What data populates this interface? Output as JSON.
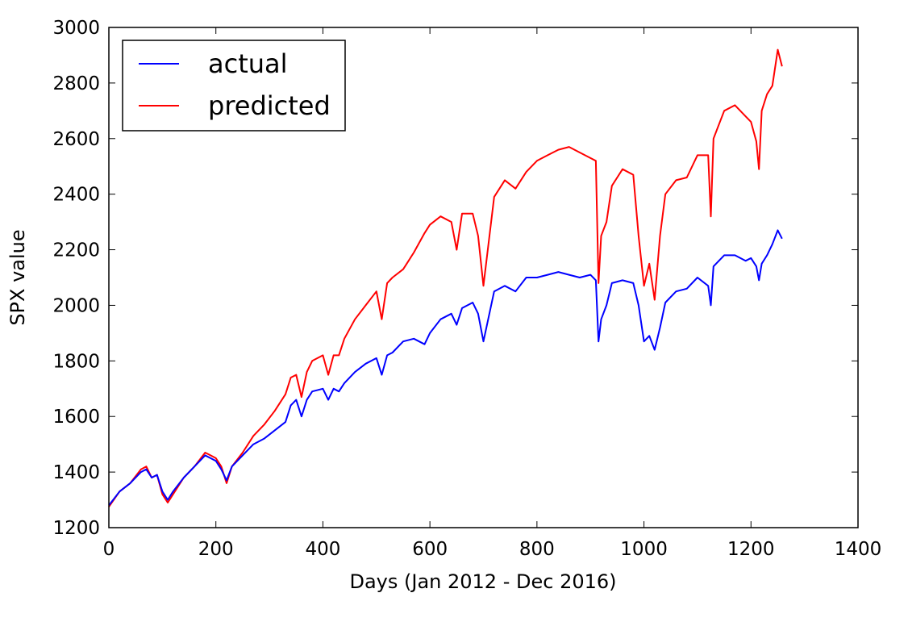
{
  "chart_data": {
    "type": "line",
    "title": "",
    "xlabel": "Days (Jan 2012 - Dec 2016)",
    "ylabel": "SPX value",
    "xlim": [
      0,
      1400
    ],
    "ylim": [
      1200,
      3000
    ],
    "xticks": [
      0,
      200,
      400,
      600,
      800,
      1000,
      1200,
      1400
    ],
    "yticks": [
      1200,
      1400,
      1600,
      1800,
      2000,
      2200,
      2400,
      2600,
      2800,
      3000
    ],
    "grid": false,
    "legend_position": "top-left",
    "series": [
      {
        "name": "actual",
        "color": "#0000ff",
        "x": [
          0,
          20,
          40,
          60,
          70,
          80,
          90,
          100,
          110,
          120,
          140,
          160,
          180,
          190,
          200,
          210,
          220,
          230,
          250,
          270,
          290,
          310,
          330,
          340,
          350,
          360,
          370,
          380,
          400,
          410,
          420,
          430,
          440,
          460,
          480,
          500,
          510,
          520,
          530,
          550,
          570,
          590,
          600,
          620,
          640,
          650,
          660,
          680,
          690,
          700,
          720,
          740,
          760,
          780,
          800,
          820,
          840,
          860,
          880,
          900,
          910,
          915,
          920,
          930,
          940,
          960,
          980,
          990,
          1000,
          1010,
          1020,
          1030,
          1040,
          1060,
          1080,
          1100,
          1120,
          1125,
          1130,
          1150,
          1170,
          1190,
          1200,
          1210,
          1215,
          1220,
          1230,
          1240,
          1250,
          1258
        ],
        "values": [
          1280,
          1330,
          1360,
          1400,
          1410,
          1380,
          1390,
          1330,
          1300,
          1330,
          1380,
          1420,
          1460,
          1450,
          1440,
          1410,
          1370,
          1420,
          1460,
          1500,
          1520,
          1550,
          1580,
          1640,
          1660,
          1600,
          1660,
          1690,
          1700,
          1660,
          1700,
          1690,
          1720,
          1760,
          1790,
          1810,
          1750,
          1820,
          1830,
          1870,
          1880,
          1860,
          1900,
          1950,
          1970,
          1930,
          1990,
          2010,
          1970,
          1870,
          2050,
          2070,
          2050,
          2100,
          2100,
          2110,
          2120,
          2110,
          2100,
          2110,
          2090,
          1870,
          1950,
          2000,
          2080,
          2090,
          2080,
          2000,
          1870,
          1890,
          1840,
          1920,
          2010,
          2050,
          2060,
          2100,
          2070,
          2000,
          2140,
          2180,
          2180,
          2160,
          2170,
          2140,
          2090,
          2150,
          2180,
          2220,
          2270,
          2240
        ]
      },
      {
        "name": "predicted",
        "color": "#ff0000",
        "x": [
          0,
          20,
          40,
          60,
          70,
          80,
          90,
          100,
          110,
          120,
          140,
          160,
          180,
          190,
          200,
          210,
          220,
          230,
          250,
          270,
          290,
          310,
          330,
          340,
          350,
          360,
          370,
          380,
          400,
          410,
          420,
          430,
          440,
          460,
          480,
          500,
          510,
          520,
          530,
          550,
          570,
          590,
          600,
          620,
          640,
          650,
          660,
          680,
          690,
          700,
          720,
          740,
          760,
          780,
          800,
          820,
          840,
          860,
          880,
          900,
          910,
          915,
          920,
          930,
          940,
          960,
          980,
          990,
          1000,
          1010,
          1020,
          1030,
          1040,
          1060,
          1080,
          1100,
          1120,
          1125,
          1130,
          1150,
          1170,
          1190,
          1200,
          1210,
          1215,
          1220,
          1230,
          1240,
          1250,
          1258
        ],
        "values": [
          1275,
          1330,
          1360,
          1410,
          1420,
          1380,
          1390,
          1320,
          1290,
          1320,
          1380,
          1420,
          1470,
          1460,
          1450,
          1420,
          1360,
          1420,
          1470,
          1530,
          1570,
          1620,
          1680,
          1740,
          1750,
          1670,
          1760,
          1800,
          1820,
          1750,
          1820,
          1820,
          1880,
          1950,
          2000,
          2050,
          1950,
          2080,
          2100,
          2130,
          2190,
          2260,
          2290,
          2320,
          2300,
          2200,
          2330,
          2330,
          2250,
          2070,
          2390,
          2450,
          2420,
          2480,
          2520,
          2540,
          2560,
          2570,
          2550,
          2530,
          2520,
          2080,
          2250,
          2300,
          2430,
          2490,
          2470,
          2250,
          2070,
          2150,
          2020,
          2250,
          2400,
          2450,
          2460,
          2540,
          2540,
          2320,
          2600,
          2700,
          2720,
          2680,
          2660,
          2590,
          2490,
          2700,
          2760,
          2790,
          2920,
          2860
        ]
      }
    ]
  }
}
